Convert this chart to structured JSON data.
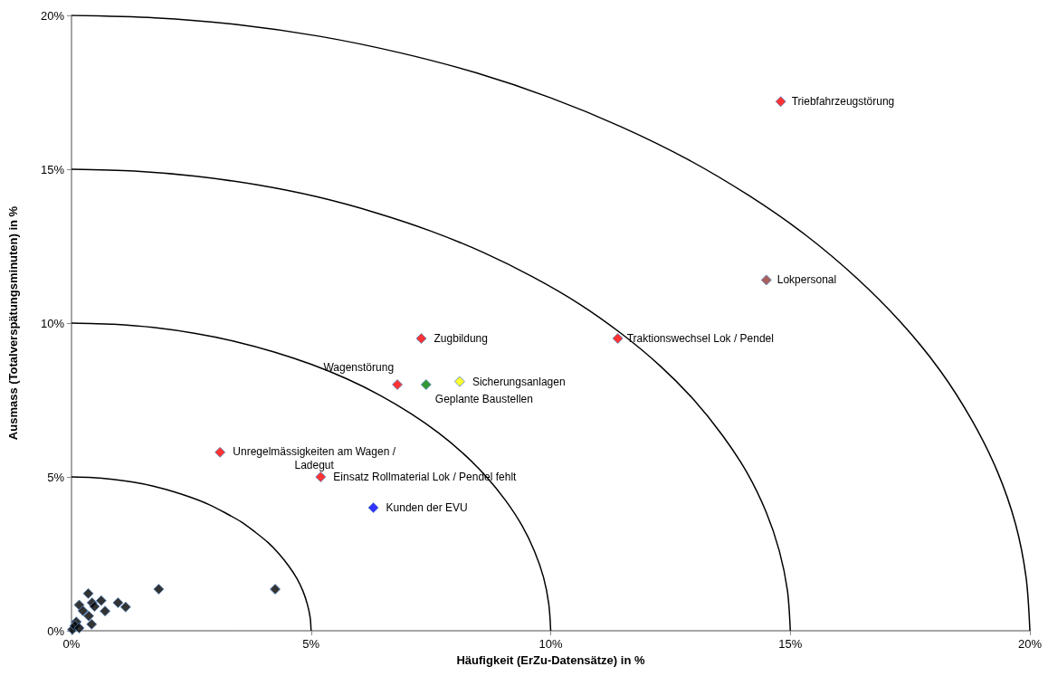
{
  "chart_data": {
    "type": "scatter",
    "xlabel": "Häufigkeit (ErZu-Datensätze) in %",
    "ylabel": "Ausmass (Totalverspätungsminuten) in %",
    "xlim": [
      0,
      20
    ],
    "ylim": [
      0,
      20
    ],
    "xticks": [
      {
        "value": 0,
        "label": "0%"
      },
      {
        "value": 5,
        "label": "5%"
      },
      {
        "value": 10,
        "label": "10%"
      },
      {
        "value": 15,
        "label": "15%"
      },
      {
        "value": 20,
        "label": "20%"
      }
    ],
    "yticks": [
      {
        "value": 0,
        "label": "0%"
      },
      {
        "value": 5,
        "label": "5%"
      },
      {
        "value": 10,
        "label": "10%"
      },
      {
        "value": 15,
        "label": "15%"
      },
      {
        "value": 20,
        "label": "20%"
      }
    ],
    "grid": false,
    "marker": "diamond",
    "series": [
      {
        "x": [
          14.8,
          14.5,
          11.4,
          7.3,
          6.8,
          7.4,
          8.1,
          3.1,
          5.2,
          6.3,
          1.82,
          4.25,
          0.35,
          0.16,
          0.62,
          0.43,
          0.48,
          0.97,
          1.13,
          0.7,
          0.24,
          0.36,
          0.02,
          0.1,
          0.23,
          0.29,
          0.42,
          0.07,
          0.16
        ],
        "values": [
          17.2,
          11.4,
          9.5,
          9.5,
          8.0,
          8.0,
          8.1,
          5.8,
          5.0,
          4.0,
          1.35,
          1.35,
          1.21,
          0.84,
          0.98,
          0.91,
          0.79,
          0.91,
          0.77,
          0.64,
          0.65,
          0.48,
          0.04,
          0.29,
          null,
          null,
          0.21,
          0.16,
          0.09
        ],
        "colors": [
          "#ff0000",
          "#953735",
          "#ff0000",
          "#ff0000",
          "#ff0000",
          "#008000",
          "#ffff00",
          "#ff0000",
          "#ff0000",
          "#0000ff",
          "#000000",
          "#000000",
          "#000000",
          "#000000",
          "#000000",
          "#000000",
          "#000000",
          "#000000",
          "#000000",
          "#000000",
          "#000000",
          "#000000",
          "#000000",
          "#000000",
          "#000000",
          "#000000",
          "#000000",
          "#000000",
          "#000000"
        ]
      },
      {
        "type": "line",
        "color": "#000000",
        "marker": "none",
        "x": [
          0,
          0.44,
          0.87,
          1.29,
          1.71,
          2.11,
          2.5,
          2.87,
          3.21,
          3.54,
          3.83,
          4.1,
          4.33,
          4.53,
          4.7,
          4.83,
          4.92,
          4.98,
          5
        ],
        "values": [
          5,
          4.98,
          4.92,
          4.83,
          4.7,
          4.53,
          4.33,
          4.1,
          3.83,
          3.54,
          3.21,
          2.87,
          2.5,
          2.11,
          1.71,
          1.29,
          0.87,
          0.44,
          0
        ]
      },
      {
        "type": "line",
        "color": "#000000",
        "marker": "none",
        "x": [
          0,
          0.87,
          1.74,
          2.59,
          3.42,
          4.23,
          5,
          5.74,
          6.43,
          7.07,
          7.66,
          8.19,
          8.66,
          9.06,
          9.4,
          9.66,
          9.85,
          9.96,
          10
        ],
        "values": [
          10,
          9.96,
          9.85,
          9.66,
          9.4,
          9.06,
          8.66,
          8.19,
          7.66,
          7.07,
          6.43,
          5.74,
          5,
          4.23,
          3.42,
          2.59,
          1.74,
          0.87,
          0
        ]
      },
      {
        "type": "line",
        "color": "#000000",
        "marker": "none",
        "x": [
          0,
          1.31,
          2.6,
          3.88,
          5.13,
          6.34,
          7.5,
          8.6,
          9.64,
          10.61,
          11.49,
          12.29,
          12.99,
          13.59,
          14.1,
          14.49,
          14.77,
          14.94,
          15
        ],
        "values": [
          15,
          14.94,
          14.77,
          14.49,
          14.1,
          13.59,
          12.99,
          12.29,
          11.49,
          10.61,
          9.64,
          8.6,
          7.5,
          6.34,
          5.13,
          3.88,
          2.6,
          1.31,
          0
        ]
      },
      {
        "type": "line",
        "color": "#000000",
        "marker": "none",
        "x": [
          0,
          1.74,
          3.47,
          5.18,
          6.84,
          8.45,
          10,
          11.47,
          12.86,
          14.14,
          15.32,
          16.38,
          17.32,
          18.13,
          18.79,
          19.32,
          19.7,
          19.92,
          20
        ],
        "values": [
          20,
          19.92,
          19.7,
          19.32,
          18.79,
          18.13,
          17.32,
          16.38,
          15.32,
          14.14,
          12.86,
          11.47,
          10,
          8.45,
          6.84,
          5.18,
          3.47,
          1.74,
          0
        ]
      }
    ],
    "annotations": [
      {
        "text": "Triebfahrzeugstörung",
        "x": 14.8,
        "y": 17.2
      },
      {
        "text": "Lokpersonal",
        "x": 14.5,
        "y": 11.4
      },
      {
        "text": "Traktionswechsel Lok / Pendel",
        "x": 11.4,
        "y": 9.5
      },
      {
        "text": "Zugbildung",
        "x": 7.3,
        "y": 9.5
      },
      {
        "text": "Wagenstörung",
        "x": 6.8,
        "y": 8.0
      },
      {
        "text": "Geplante Baustellen",
        "x": 7.4,
        "y": 8.0
      },
      {
        "text": "Sicherungsanlagen",
        "x": 8.1,
        "y": 8.1
      },
      {
        "text": "Unregelmässigkeiten am Wagen / Ladegut",
        "x": 3.1,
        "y": 5.8
      },
      {
        "text": "Einsatz Rollmaterial Lok / Pendel fehlt",
        "x": 5.2,
        "y": 5.0
      },
      {
        "text": "Kunden der EVU",
        "x": 6.3,
        "y": 4.0
      }
    ]
  }
}
